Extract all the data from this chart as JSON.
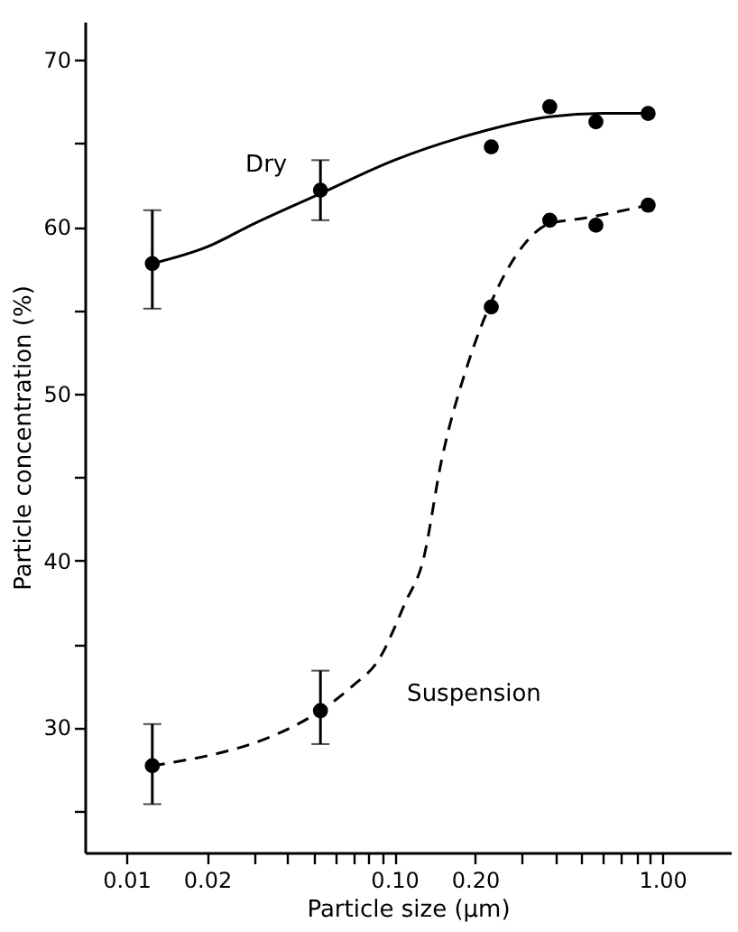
{
  "chart_data": {
    "type": "scatter",
    "xlabel": "Particle size (µm)",
    "ylabel": "Particle concentration (%)",
    "log": "x",
    "grid": false,
    "xlim": [
      0.007,
      1.8
    ],
    "xticks": [
      {
        "value": 0.01,
        "label": "0.01"
      },
      {
        "value": 0.02,
        "label": "0.02"
      },
      {
        "value": 0.03,
        "label": null
      },
      {
        "value": 0.04,
        "label": null
      },
      {
        "value": 0.05,
        "label": null
      },
      {
        "value": 0.06,
        "label": null
      },
      {
        "value": 0.07,
        "label": null
      },
      {
        "value": 0.08,
        "label": null
      },
      {
        "value": 0.09,
        "label": null
      },
      {
        "value": 0.1,
        "label": "0.10"
      },
      {
        "value": 0.2,
        "label": "0.20"
      },
      {
        "value": 0.3,
        "label": null
      },
      {
        "value": 0.4,
        "label": null
      },
      {
        "value": 0.5,
        "label": null
      },
      {
        "value": 0.6,
        "label": null
      },
      {
        "value": 0.7,
        "label": null
      },
      {
        "value": 0.8,
        "label": null
      },
      {
        "value": 0.9,
        "label": null
      },
      {
        "value": 1,
        "label": "1.00"
      }
    ],
    "ylim": [
      22.5,
      72.3
    ],
    "yticks": [
      {
        "value": 25,
        "label": null
      },
      30,
      {
        "value": 35,
        "label": null
      },
      40,
      {
        "value": 45,
        "label": null
      },
      50,
      {
        "value": 55,
        "label": null
      },
      60,
      {
        "value": 65,
        "label": null
      },
      70
    ],
    "series": [
      {
        "marker": "circle",
        "color": "#000000",
        "x": [
          0.0125,
          0.053,
          0.23,
          0.38,
          0.565,
          0.885
        ],
        "values": [
          57.8,
          62.2,
          64.8,
          67.2,
          66.3,
          66.8
        ],
        "errors": [
          [
            55.1,
            61.0
          ],
          [
            60.4,
            64.0
          ],
          null,
          null,
          null,
          null
        ]
      },
      {
        "type": "line",
        "name": "Dry",
        "line_style": "solid",
        "color": "#000000",
        "x": [
          0.0125,
          0.02,
          0.03,
          0.053,
          0.1,
          0.2,
          0.38,
          0.6,
          0.885
        ],
        "values": [
          57.8,
          58.8,
          60.2,
          62.0,
          64.0,
          65.6,
          66.6,
          66.8,
          66.8
        ]
      },
      {
        "marker": "circle",
        "color": "#000000",
        "x": [
          0.0125,
          0.053,
          0.23,
          0.38,
          0.565,
          0.885
        ],
        "values": [
          27.7,
          31.0,
          55.2,
          60.4,
          60.1,
          61.3
        ],
        "errors": [
          [
            25.4,
            30.2
          ],
          [
            29.0,
            33.4
          ],
          null,
          null,
          null,
          null
        ]
      },
      {
        "type": "line",
        "name": "Suspension",
        "line_style": "dashed",
        "color": "#000000",
        "x": [
          0.0125,
          0.053,
          0.07,
          0.087,
          0.11,
          0.128,
          0.15,
          0.19,
          0.23,
          0.3,
          0.38,
          0.5,
          0.885
        ],
        "values": [
          27.7,
          31.0,
          32.5,
          34.0,
          37.5,
          40.0,
          46.0,
          52.0,
          55.5,
          58.8,
          60.2,
          60.5,
          61.3
        ]
      }
    ]
  }
}
